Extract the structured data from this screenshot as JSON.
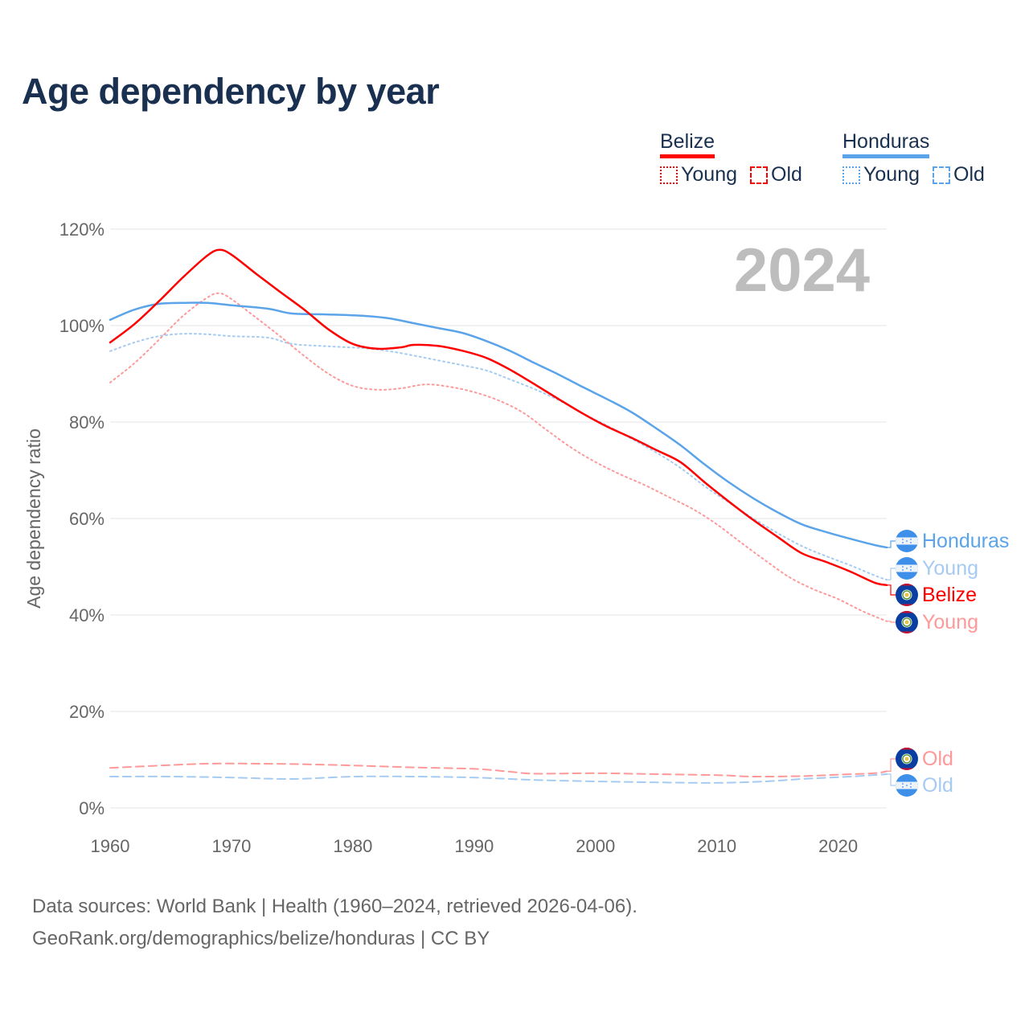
{
  "title": "Age dependency by year",
  "legend": [
    {
      "country": "Belize",
      "color": "#ff0000",
      "light_color": "#ff9999",
      "items": [
        "Young",
        "Old"
      ]
    },
    {
      "country": "Honduras",
      "color": "#5ba4ea",
      "light_color": "#a6cbf3",
      "items": [
        "Young",
        "Old"
      ]
    }
  ],
  "year_overlay": "2024",
  "footer": {
    "line1": "Data sources: World Bank | Health (1960–2024, retrieved 2026-04-06).",
    "line2": "GeoRank.org/demographics/belize/honduras | CC BY"
  },
  "chart_data": {
    "type": "line",
    "title": "Age dependency by year",
    "xlabel": "",
    "ylabel": "Age dependency ratio",
    "xlim": [
      1960,
      2024
    ],
    "ylim": [
      0,
      120
    ],
    "x_ticks": [
      "1960",
      "1970",
      "1980",
      "1990",
      "2000",
      "2010",
      "2020"
    ],
    "y_ticks": [
      "0%",
      "20%",
      "40%",
      "60%",
      "80%",
      "100%",
      "120%"
    ],
    "grid": true,
    "legend_position": "top-right",
    "series": [
      {
        "name": "Honduras",
        "label": "Honduras",
        "country": "honduras",
        "style": "solid",
        "color": "#5ba4ea",
        "points": [
          [
            1960,
            101.2
          ],
          [
            1962,
            103.3
          ],
          [
            1964,
            104.5
          ],
          [
            1966,
            104.7
          ],
          [
            1968,
            104.7
          ],
          [
            1970,
            104.2
          ],
          [
            1973,
            103.5
          ],
          [
            1975,
            102.5
          ],
          [
            1978,
            102.3
          ],
          [
            1981,
            102
          ],
          [
            1983,
            101.5
          ],
          [
            1985,
            100.5
          ],
          [
            1987,
            99.5
          ],
          [
            1989,
            98.5
          ],
          [
            1991,
            96.8
          ],
          [
            1993,
            94.7
          ],
          [
            1995,
            92.2
          ],
          [
            1997,
            89.8
          ],
          [
            1999,
            87.2
          ],
          [
            2001,
            84.7
          ],
          [
            2003,
            82
          ],
          [
            2005,
            78.7
          ],
          [
            2007,
            75.2
          ],
          [
            2009,
            71.2
          ],
          [
            2011,
            67.5
          ],
          [
            2013,
            64.2
          ],
          [
            2015,
            61.3
          ],
          [
            2017,
            58.8
          ],
          [
            2019,
            57.2
          ],
          [
            2021,
            55.8
          ],
          [
            2023,
            54.5
          ],
          [
            2024,
            54
          ]
        ]
      },
      {
        "name": "Honduras Young",
        "label": "Young",
        "country": "honduras",
        "style": "dotted",
        "color": "#a6cbf3",
        "points": [
          [
            1960,
            94.7
          ],
          [
            1962,
            96.5
          ],
          [
            1964,
            97.8
          ],
          [
            1966,
            98.3
          ],
          [
            1968,
            98.2
          ],
          [
            1970,
            97.8
          ],
          [
            1973,
            97.5
          ],
          [
            1975,
            96.2
          ],
          [
            1978,
            95.7
          ],
          [
            1981,
            95.3
          ],
          [
            1983,
            94.7
          ],
          [
            1985,
            93.8
          ],
          [
            1987,
            92.8
          ],
          [
            1989,
            91.8
          ],
          [
            1991,
            90.7
          ],
          [
            1993,
            88.8
          ],
          [
            1995,
            86.8
          ],
          [
            1997,
            84.5
          ],
          [
            1999,
            81.7
          ],
          [
            2001,
            79.2
          ],
          [
            2003,
            76.5
          ],
          [
            2005,
            73.7
          ],
          [
            2007,
            70.5
          ],
          [
            2009,
            66.7
          ],
          [
            2011,
            63.3
          ],
          [
            2013,
            60
          ],
          [
            2015,
            57
          ],
          [
            2017,
            54.3
          ],
          [
            2019,
            52.2
          ],
          [
            2021,
            50.3
          ],
          [
            2023,
            48.2
          ],
          [
            2024,
            47.3
          ]
        ]
      },
      {
        "name": "Belize",
        "label": "Belize",
        "country": "belize",
        "style": "solid",
        "color": "#ff0000",
        "points": [
          [
            1960,
            96.5
          ],
          [
            1962,
            100.3
          ],
          [
            1964,
            105
          ],
          [
            1966,
            110
          ],
          [
            1968,
            114.5
          ],
          [
            1969,
            115.7
          ],
          [
            1970,
            114.7
          ],
          [
            1972,
            110.8
          ],
          [
            1974,
            107
          ],
          [
            1976,
            103.3
          ],
          [
            1978,
            99.2
          ],
          [
            1980,
            96.2
          ],
          [
            1982,
            95.2
          ],
          [
            1984,
            95.5
          ],
          [
            1985,
            96
          ],
          [
            1987,
            95.8
          ],
          [
            1989,
            94.8
          ],
          [
            1991,
            93.3
          ],
          [
            1993,
            90.8
          ],
          [
            1995,
            87.8
          ],
          [
            1997,
            84.7
          ],
          [
            1999,
            81.7
          ],
          [
            2001,
            79
          ],
          [
            2003,
            76.7
          ],
          [
            2005,
            74.2
          ],
          [
            2007,
            71.7
          ],
          [
            2009,
            67.5
          ],
          [
            2011,
            63.5
          ],
          [
            2013,
            59.7
          ],
          [
            2015,
            56.2
          ],
          [
            2017,
            52.8
          ],
          [
            2019,
            51
          ],
          [
            2021,
            49
          ],
          [
            2023,
            46.7
          ],
          [
            2024,
            46.2
          ]
        ]
      },
      {
        "name": "Belize Young",
        "label": "Young",
        "country": "belize",
        "style": "dotted",
        "color": "#ff9999",
        "points": [
          [
            1960,
            88.2
          ],
          [
            1962,
            92.2
          ],
          [
            1964,
            97
          ],
          [
            1966,
            102
          ],
          [
            1968,
            105.8
          ],
          [
            1969,
            106.7
          ],
          [
            1970,
            105.5
          ],
          [
            1972,
            101.7
          ],
          [
            1974,
            97.8
          ],
          [
            1976,
            93.7
          ],
          [
            1978,
            90
          ],
          [
            1980,
            87.5
          ],
          [
            1982,
            86.7
          ],
          [
            1984,
            87
          ],
          [
            1986,
            87.8
          ],
          [
            1988,
            87.3
          ],
          [
            1990,
            86.2
          ],
          [
            1992,
            84.5
          ],
          [
            1994,
            82
          ],
          [
            1996,
            78.3
          ],
          [
            1998,
            74.7
          ],
          [
            2000,
            71.7
          ],
          [
            2002,
            69.2
          ],
          [
            2004,
            67
          ],
          [
            2006,
            64.5
          ],
          [
            2008,
            62
          ],
          [
            2010,
            58.8
          ],
          [
            2012,
            55
          ],
          [
            2014,
            51.3
          ],
          [
            2016,
            47.8
          ],
          [
            2018,
            45.3
          ],
          [
            2020,
            43.3
          ],
          [
            2022,
            40.8
          ],
          [
            2024,
            38.7
          ]
        ]
      },
      {
        "name": "Belize Old",
        "label": "Old",
        "country": "belize",
        "style": "dashed",
        "color": "#ff9999",
        "points": [
          [
            1960,
            8.3
          ],
          [
            1966,
            9
          ],
          [
            1969,
            9.2
          ],
          [
            1975,
            9.1
          ],
          [
            1980,
            8.8
          ],
          [
            1985,
            8.4
          ],
          [
            1990,
            8.1
          ],
          [
            1993,
            7.5
          ],
          [
            1995,
            7.1
          ],
          [
            2000,
            7.2
          ],
          [
            2005,
            7.0
          ],
          [
            2010,
            6.8
          ],
          [
            2013,
            6.5
          ],
          [
            2017,
            6.6
          ],
          [
            2020,
            6.9
          ],
          [
            2023,
            7.2
          ],
          [
            2024,
            7.6
          ]
        ]
      },
      {
        "name": "Honduras Old",
        "label": "Old",
        "country": "honduras",
        "style": "dashed",
        "color": "#a6cbf3",
        "points": [
          [
            1960,
            6.5
          ],
          [
            1965,
            6.5
          ],
          [
            1970,
            6.3
          ],
          [
            1975,
            6.0
          ],
          [
            1980,
            6.5
          ],
          [
            1985,
            6.5
          ],
          [
            1990,
            6.3
          ],
          [
            1995,
            5.8
          ],
          [
            2000,
            5.5
          ],
          [
            2005,
            5.3
          ],
          [
            2010,
            5.2
          ],
          [
            2014,
            5.5
          ],
          [
            2017,
            6.0
          ],
          [
            2021,
            6.5
          ],
          [
            2024,
            7.0
          ]
        ]
      }
    ]
  }
}
